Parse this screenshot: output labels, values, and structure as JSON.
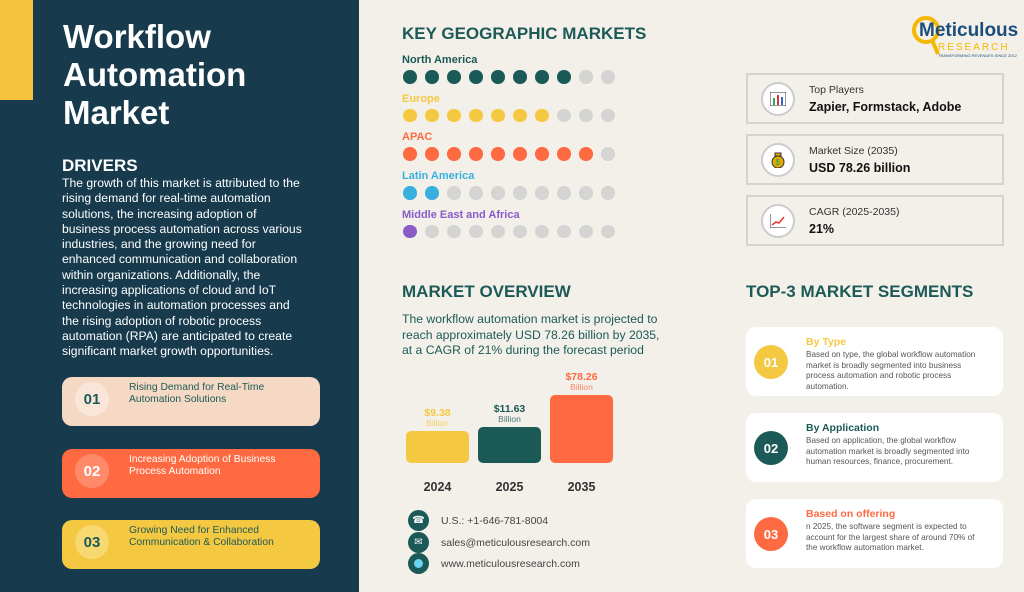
{
  "title": "Workflow Automation Market",
  "drivers": {
    "heading": "DRIVERS",
    "text": "The growth of this market is attributed to the rising demand for real-time automation solutions, the increasing adoption of business process automation across various industries, and the growing need for enhanced communication and collaboration within organizations. Additionally, the increasing applications of cloud and IoT technologies in automation processes and the rising adoption of robotic process automation (RPA) are anticipated to create significant market growth opportunities.",
    "items": [
      {
        "num": "01",
        "label": "Rising Demand for Real-Time Automation Solutions"
      },
      {
        "num": "02",
        "label": "Increasing Adoption of Business Process Automation"
      },
      {
        "num": "03",
        "label": "Growing Need for Enhanced Communication & Collaboration"
      }
    ]
  },
  "geo": {
    "heading": "KEY GEOGRAPHIC MARKETS",
    "regions": [
      {
        "name": "North America",
        "filled": 8,
        "total": 10,
        "color": "#1c5a57"
      },
      {
        "name": "Europe",
        "filled": 7,
        "total": 10,
        "color": "#f5c842"
      },
      {
        "name": "APAC",
        "filled": 9,
        "total": 10,
        "color": "#ff6a42"
      },
      {
        "name": "Latin America",
        "filled": 2,
        "total": 10,
        "color": "#3ab0de"
      },
      {
        "name": "Middle East and Africa",
        "filled": 1,
        "total": 10,
        "color": "#8b5cc9"
      }
    ]
  },
  "logo": {
    "name": "Meticulous",
    "sub": "RESEARCH",
    "tagline": "TRANSFORMING REVENUES SINCE 2012"
  },
  "stats": [
    {
      "label": "Top Players",
      "value": "Zapier, Formstack, Adobe",
      "icon": "bar-chart-icon"
    },
    {
      "label": "Market Size (2035)",
      "value": "USD 78.26 billion",
      "icon": "money-bag-icon"
    },
    {
      "label": "CAGR (2025-2035)",
      "value": "21%",
      "icon": "growth-chart-icon"
    }
  ],
  "overview": {
    "heading": "MARKET OVERVIEW",
    "text": "The workflow automation  market is projected to reach approximately USD 78.26 billion by 2035, at a CAGR of 21% during the forecast period"
  },
  "chart_data": {
    "type": "bar",
    "categories": [
      "2024",
      "2025",
      "2035"
    ],
    "values": [
      9.38,
      11.63,
      78.26
    ],
    "labels": [
      "$9.38",
      "$11.63",
      "$78.26"
    ],
    "unit": "Billion",
    "colors": [
      "#f5c842",
      "#1c5a57",
      "#ff6a42"
    ]
  },
  "contacts": [
    {
      "icon": "phone-icon",
      "text": "U.S.: +1-646-781-8004"
    },
    {
      "icon": "email-icon",
      "text": "sales@meticulousresearch.com"
    },
    {
      "icon": "globe-icon",
      "text": "www.meticulousresearch.com"
    }
  ],
  "segments": {
    "heading": "TOP-3 MARKET SEGMENTS",
    "items": [
      {
        "num": "01",
        "title": "By Type",
        "text": "Based on type, the global workflow automation market is broadly segmented into business process automation and robotic process automation.",
        "color": "#f5c842"
      },
      {
        "num": "02",
        "title": "By Application",
        "text": "Based on application, the global workflow automation market is broadly segmented into human resources, finance, procurement.",
        "color": "#1c5a57"
      },
      {
        "num": "03",
        "title": "Based on offering",
        "text": "n 2025, the software segment is expected to account for the largest share of around 70% of the workflow automation market.",
        "color": "#ff6a42"
      }
    ]
  }
}
